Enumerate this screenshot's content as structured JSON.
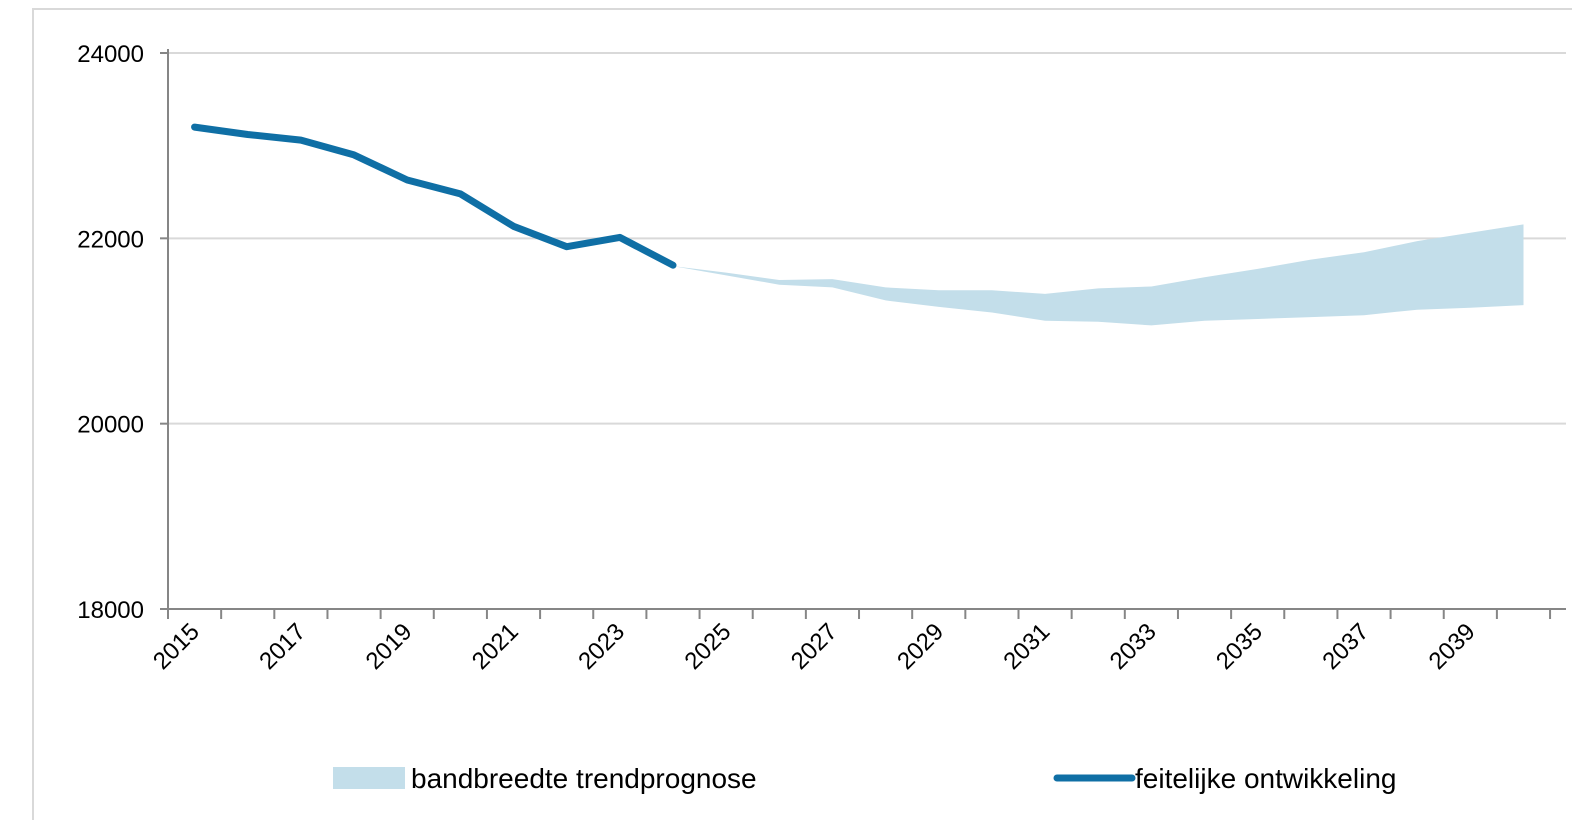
{
  "chart_data": {
    "type": "area",
    "title": "",
    "xlabel": "",
    "ylabel": "",
    "ylim": [
      18000,
      24000
    ],
    "yticks": [
      18000,
      20000,
      22000,
      24000
    ],
    "xticks": [
      "2015",
      "2017",
      "2019",
      "2021",
      "2023",
      "2025",
      "2027",
      "2029",
      "2031",
      "2033",
      "2035",
      "2037",
      "2039"
    ],
    "grid": true,
    "legend_position": "bottom",
    "series": [
      {
        "name": "bandbreedte trendprognose",
        "kind": "band",
        "color": "#c3deea",
        "x": [
          2024,
          2025,
          2026,
          2027,
          2028,
          2029,
          2030,
          2031,
          2032,
          2033,
          2034,
          2035,
          2036,
          2037,
          2038,
          2039,
          2040
        ],
        "upper": [
          21700,
          21630,
          21550,
          21560,
          21470,
          21440,
          21440,
          21400,
          21460,
          21480,
          21580,
          21670,
          21770,
          21850,
          21970,
          22060,
          22150
        ],
        "lower": [
          21700,
          21600,
          21500,
          21470,
          21330,
          21260,
          21200,
          21110,
          21100,
          21060,
          21110,
          21130,
          21150,
          21170,
          21230,
          21250,
          21280
        ]
      },
      {
        "name": "feitelijke ontwikkeling",
        "kind": "line",
        "color": "#0f6fa5",
        "x": [
          2015,
          2016,
          2017,
          2018,
          2019,
          2020,
          2021,
          2022,
          2023,
          2024
        ],
        "values": [
          23200,
          23120,
          23060,
          22900,
          22630,
          22480,
          22130,
          21910,
          22010,
          21710
        ]
      }
    ]
  }
}
